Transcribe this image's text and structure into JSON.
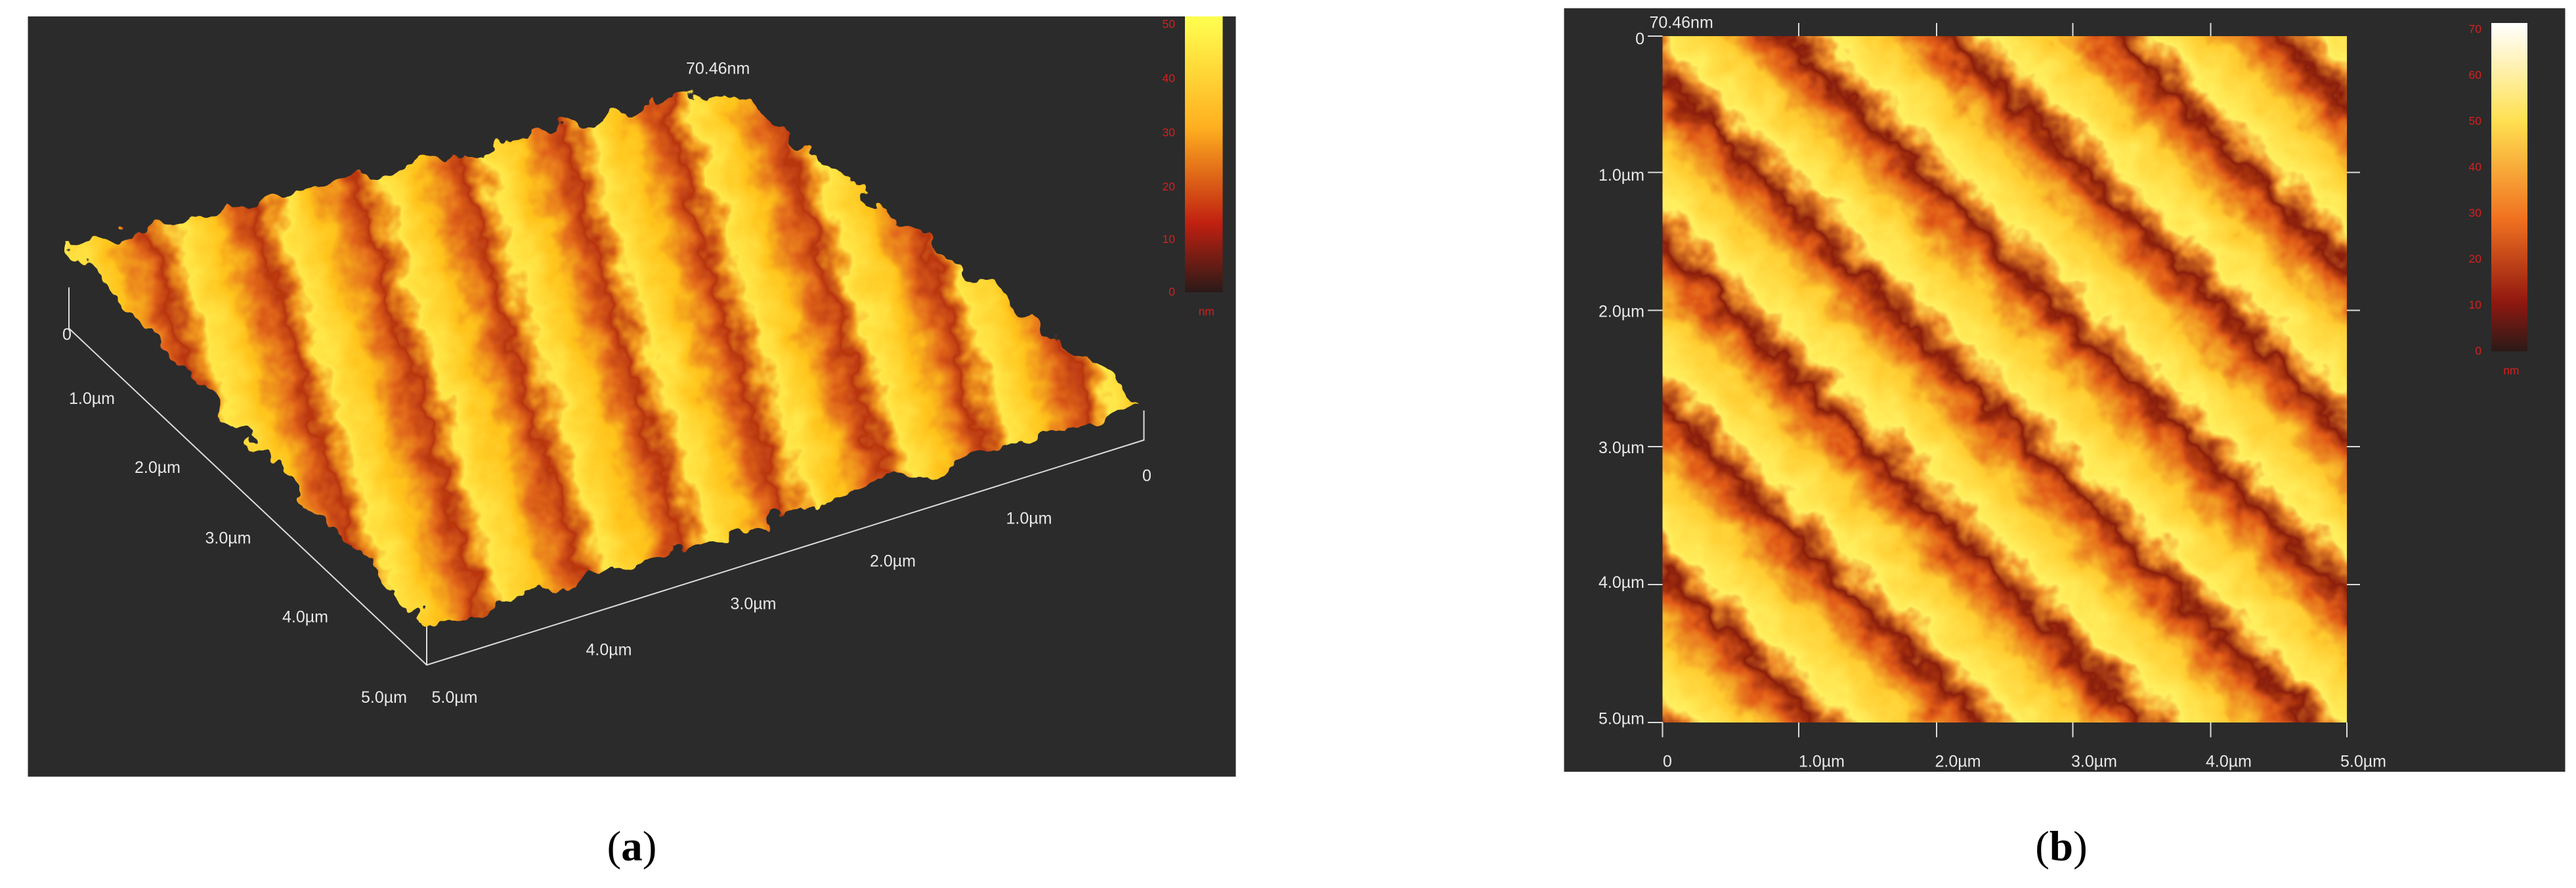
{
  "panels": [
    {
      "label": "a",
      "peak": "70.46nm",
      "colorbar": {
        "ticks": [
          "50",
          "40",
          "30",
          "20",
          "10",
          "0"
        ],
        "unit": "nm"
      },
      "left_axis": [
        "0",
        "1.0µm",
        "2.0µm",
        "3.0µm",
        "4.0µm",
        "5.0µm"
      ],
      "right_axis": [
        "0",
        "1.0µm",
        "2.0µm",
        "3.0µm",
        "4.0µm",
        "5.0µm"
      ]
    },
    {
      "label": "b",
      "peak": "70.46nm",
      "colorbar": {
        "ticks": [
          "70",
          "60",
          "50",
          "40",
          "30",
          "20",
          "10",
          "0"
        ],
        "unit": "nm"
      },
      "y_axis": [
        "0",
        "1.0µm",
        "2.0µm",
        "3.0µm",
        "4.0µm",
        "5.0µm"
      ],
      "x_axis": [
        "0",
        "1.0µm",
        "2.0µm",
        "3.0µm",
        "4.0µm",
        "5.0µm"
      ]
    }
  ]
}
